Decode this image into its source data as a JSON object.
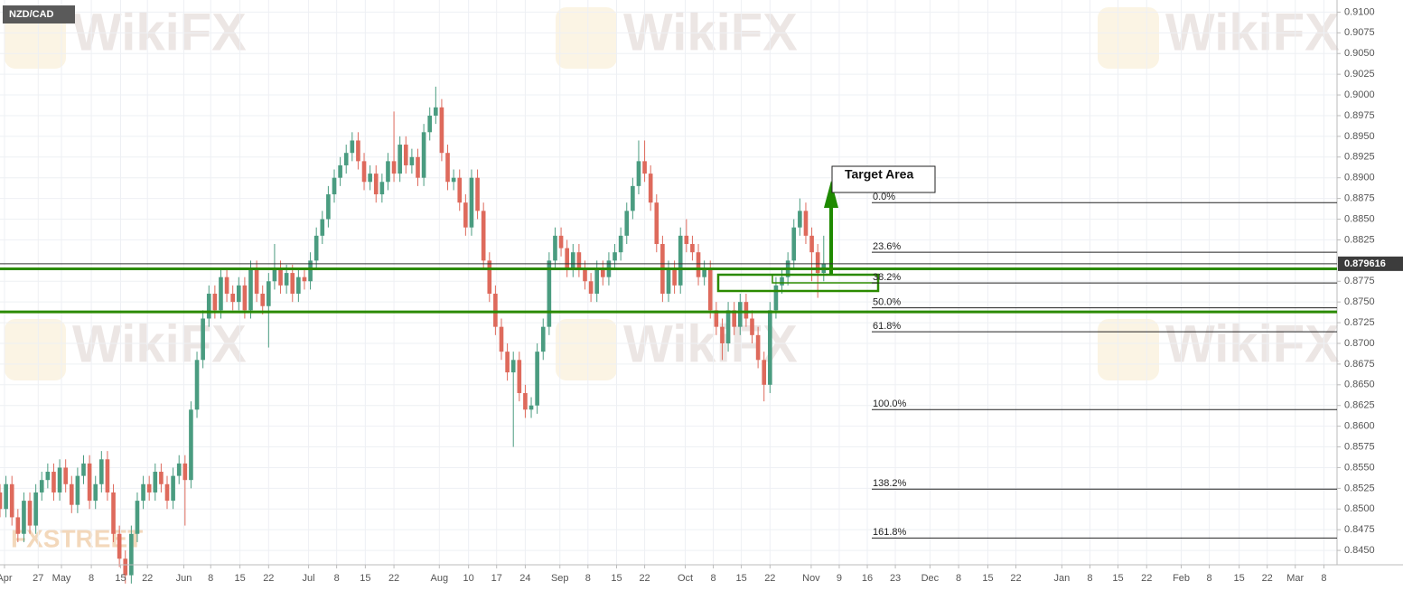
{
  "chart_data": {
    "type": "candlestick",
    "symbol": "NZD/CAD",
    "watermark": "WikiFX",
    "watermark2": "FXSTREET",
    "annotation": "Target Area",
    "up_color": "#4a9c80",
    "down_color": "#de6a5c",
    "grid": true,
    "ylim": [
      0.8425,
      0.9107
    ],
    "xlim": [
      0,
      224
    ],
    "yticks": [
      {
        "value": 0.91,
        "label": "0.9100"
      },
      {
        "value": 0.9075,
        "label": "0.9075"
      },
      {
        "value": 0.905,
        "label": "0.9050"
      },
      {
        "value": 0.9025,
        "label": "0.9025"
      },
      {
        "value": 0.9,
        "label": "0.9000"
      },
      {
        "value": 0.8975,
        "label": "0.8975"
      },
      {
        "value": 0.895,
        "label": "0.8950"
      },
      {
        "value": 0.8925,
        "label": "0.8925"
      },
      {
        "value": 0.89,
        "label": "0.8900"
      },
      {
        "value": 0.8875,
        "label": "0.8875"
      },
      {
        "value": 0.885,
        "label": "0.8850"
      },
      {
        "value": 0.8825,
        "label": "0.8825"
      },
      {
        "value": 0.8775,
        "label": "0.8775"
      },
      {
        "value": 0.875,
        "label": "0.8750"
      },
      {
        "value": 0.8725,
        "label": "0.8725"
      },
      {
        "value": 0.87,
        "label": "0.8700"
      },
      {
        "value": 0.8675,
        "label": "0.8675"
      },
      {
        "value": 0.865,
        "label": "0.8650"
      },
      {
        "value": 0.8625,
        "label": "0.8625"
      },
      {
        "value": 0.86,
        "label": "0.8600"
      },
      {
        "value": 0.8575,
        "label": "0.8575"
      },
      {
        "value": 0.855,
        "label": "0.8550"
      },
      {
        "value": 0.8525,
        "label": "0.8525"
      },
      {
        "value": 0.85,
        "label": "0.8500"
      },
      {
        "value": 0.8475,
        "label": "0.8475"
      },
      {
        "value": 0.845,
        "label": "0.8450"
      }
    ],
    "last_price": 0.879616,
    "xticks": [
      {
        "value": 0.75,
        "label": "Apr"
      },
      {
        "value": 6.4,
        "label": "27"
      },
      {
        "value": 10.3,
        "label": "May"
      },
      {
        "value": 15.3,
        "label": "8"
      },
      {
        "value": 20.2,
        "label": "15"
      },
      {
        "value": 24.7,
        "label": "22"
      },
      {
        "value": 30.8,
        "label": "Jun"
      },
      {
        "value": 35.3,
        "label": "8"
      },
      {
        "value": 40.2,
        "label": "15"
      },
      {
        "value": 45,
        "label": "22"
      },
      {
        "value": 51.7,
        "label": "Jul"
      },
      {
        "value": 56.4,
        "label": "8"
      },
      {
        "value": 61.2,
        "label": "15"
      },
      {
        "value": 66,
        "label": "22"
      },
      {
        "value": 73.6,
        "label": "Aug"
      },
      {
        "value": 78.5,
        "label": "10"
      },
      {
        "value": 83.2,
        "label": "17"
      },
      {
        "value": 88,
        "label": "24"
      },
      {
        "value": 93.8,
        "label": "Sep"
      },
      {
        "value": 98.5,
        "label": "8"
      },
      {
        "value": 103.3,
        "label": "15"
      },
      {
        "value": 108,
        "label": "22"
      },
      {
        "value": 114.8,
        "label": "Oct"
      },
      {
        "value": 119.5,
        "label": "8"
      },
      {
        "value": 124.2,
        "label": "15"
      },
      {
        "value": 129,
        "label": "22"
      },
      {
        "value": 135.9,
        "label": "Nov"
      },
      {
        "value": 140.6,
        "label": "9"
      },
      {
        "value": 145.3,
        "label": "16"
      },
      {
        "value": 150,
        "label": "23"
      },
      {
        "value": 155.8,
        "label": "Dec"
      },
      {
        "value": 160.6,
        "label": "8"
      },
      {
        "value": 165.5,
        "label": "15"
      },
      {
        "value": 170.2,
        "label": "22"
      },
      {
        "value": 177.9,
        "label": "Jan"
      },
      {
        "value": 182.6,
        "label": "8"
      },
      {
        "value": 187.3,
        "label": "15"
      },
      {
        "value": 192.1,
        "label": "22"
      },
      {
        "value": 197.9,
        "label": "Feb"
      },
      {
        "value": 202.6,
        "label": "8"
      },
      {
        "value": 207.6,
        "label": "15"
      },
      {
        "value": 212.3,
        "label": "22"
      },
      {
        "value": 217,
        "label": "Mar"
      },
      {
        "value": 221.8,
        "label": "8"
      }
    ],
    "support_lines": {
      "color": "#2b8a00",
      "values": [
        0.879,
        0.8738
      ]
    },
    "fibonacci": [
      {
        "label": "0.0%",
        "price": 0.887
      },
      {
        "label": "23.6%",
        "price": 0.881
      },
      {
        "label": "38.2%",
        "price": 0.8773
      },
      {
        "label": "50.0%",
        "price": 0.8743
      },
      {
        "label": "61.8%",
        "price": 0.8714
      },
      {
        "label": "100.0%",
        "price": 0.862
      },
      {
        "label": "138.2%",
        "price": 0.8524
      },
      {
        "label": "161.8%",
        "price": 0.8465
      }
    ],
    "open": [
      0.852,
      0.85,
      0.853,
      0.849,
      0.847,
      0.851,
      0.848,
      0.852,
      0.8535,
      0.8545,
      0.852,
      0.855,
      0.853,
      0.8505,
      0.854,
      0.8555,
      0.851,
      0.853,
      0.856,
      0.852,
      0.847,
      0.844,
      0.842,
      0.847,
      0.851,
      0.853,
      0.852,
      0.8545,
      0.853,
      0.851,
      0.854,
      0.8555,
      0.8535,
      0.862,
      0.868,
      0.873,
      0.876,
      0.874,
      0.878,
      0.876,
      0.875,
      0.877,
      0.874,
      0.879,
      0.876,
      0.8745,
      0.8775,
      0.879,
      0.877,
      0.8785,
      0.876,
      0.878,
      0.8775,
      0.88,
      0.883,
      0.885,
      0.888,
      0.89,
      0.8915,
      0.893,
      0.8945,
      0.892,
      0.8895,
      0.8905,
      0.888,
      0.8895,
      0.892,
      0.8905,
      0.894,
      0.8915,
      0.8925,
      0.89,
      0.8955,
      0.8975,
      0.8985,
      0.893,
      0.8895,
      0.89,
      0.887,
      0.884,
      0.89,
      0.886,
      0.88,
      0.876,
      0.872,
      0.869,
      0.8665,
      0.868,
      0.864,
      0.862,
      0.8625,
      0.869,
      0.872,
      0.88,
      0.883,
      0.8815,
      0.879,
      0.881,
      0.879,
      0.8775,
      0.876,
      0.879,
      0.878,
      0.88,
      0.881,
      0.883,
      0.886,
      0.889,
      0.892,
      0.8905,
      0.887,
      0.882,
      0.876,
      0.879,
      0.877,
      0.883,
      0.882,
      0.881,
      0.878,
      0.879,
      0.874,
      0.872,
      0.87,
      0.874,
      0.872,
      0.875,
      0.873,
      0.871,
      0.868,
      0.865,
      0.874,
      0.877,
      0.878,
      0.88,
      0.884,
      0.886,
      0.883,
      0.881,
      0.8785
    ],
    "high": [
      0.853,
      0.854,
      0.854,
      0.85,
      0.852,
      0.852,
      0.853,
      0.8545,
      0.8555,
      0.8555,
      0.856,
      0.856,
      0.854,
      0.855,
      0.8565,
      0.8565,
      0.854,
      0.857,
      0.857,
      0.853,
      0.848,
      0.845,
      0.848,
      0.852,
      0.854,
      0.854,
      0.8555,
      0.8555,
      0.854,
      0.855,
      0.8565,
      0.8565,
      0.863,
      0.869,
      0.874,
      0.877,
      0.877,
      0.879,
      0.879,
      0.877,
      0.878,
      0.878,
      0.88,
      0.88,
      0.877,
      0.8785,
      0.882,
      0.88,
      0.8795,
      0.8795,
      0.879,
      0.879,
      0.881,
      0.884,
      0.886,
      0.889,
      0.891,
      0.8925,
      0.894,
      0.8955,
      0.8955,
      0.893,
      0.8915,
      0.8915,
      0.8905,
      0.893,
      0.898,
      0.895,
      0.895,
      0.8935,
      0.8935,
      0.8965,
      0.8985,
      0.901,
      0.8995,
      0.894,
      0.891,
      0.891,
      0.888,
      0.891,
      0.891,
      0.887,
      0.881,
      0.877,
      0.873,
      0.87,
      0.869,
      0.869,
      0.865,
      0.8635,
      0.87,
      0.873,
      0.881,
      0.884,
      0.884,
      0.8825,
      0.882,
      0.882,
      0.88,
      0.8785,
      0.88,
      0.88,
      0.881,
      0.882,
      0.884,
      0.887,
      0.89,
      0.8945,
      0.8945,
      0.8915,
      0.888,
      0.883,
      0.88,
      0.88,
      0.884,
      0.885,
      0.883,
      0.882,
      0.88,
      0.88,
      0.875,
      0.873,
      0.875,
      0.875,
      0.876,
      0.876,
      0.874,
      0.872,
      0.869,
      0.875,
      0.878,
      0.879,
      0.881,
      0.885,
      0.8875,
      0.887,
      0.884,
      0.882,
      0.883
    ],
    "low": [
      0.849,
      0.849,
      0.848,
      0.846,
      0.846,
      0.847,
      0.847,
      0.851,
      0.8525,
      0.851,
      0.851,
      0.852,
      0.8495,
      0.8495,
      0.853,
      0.85,
      0.85,
      0.852,
      0.851,
      0.846,
      0.843,
      0.841,
      0.841,
      0.846,
      0.85,
      0.851,
      0.851,
      0.852,
      0.85,
      0.85,
      0.853,
      0.848,
      0.8525,
      0.861,
      0.867,
      0.872,
      0.873,
      0.873,
      0.875,
      0.874,
      0.874,
      0.873,
      0.873,
      0.875,
      0.8735,
      0.8695,
      0.8765,
      0.876,
      0.876,
      0.875,
      0.875,
      0.8765,
      0.8765,
      0.879,
      0.882,
      0.884,
      0.887,
      0.889,
      0.8905,
      0.892,
      0.891,
      0.8885,
      0.8885,
      0.887,
      0.887,
      0.8885,
      0.8895,
      0.8895,
      0.8905,
      0.8905,
      0.889,
      0.889,
      0.8945,
      0.8965,
      0.892,
      0.8885,
      0.8885,
      0.886,
      0.883,
      0.883,
      0.885,
      0.879,
      0.875,
      0.871,
      0.868,
      0.8655,
      0.8575,
      0.863,
      0.861,
      0.861,
      0.8615,
      0.868,
      0.871,
      0.879,
      0.8805,
      0.878,
      0.878,
      0.878,
      0.8765,
      0.875,
      0.875,
      0.877,
      0.877,
      0.879,
      0.88,
      0.882,
      0.885,
      0.888,
      0.8895,
      0.886,
      0.881,
      0.875,
      0.875,
      0.876,
      0.876,
      0.881,
      0.88,
      0.877,
      0.877,
      0.873,
      0.871,
      0.868,
      0.869,
      0.871,
      0.871,
      0.872,
      0.87,
      0.867,
      0.863,
      0.864,
      0.873,
      0.876,
      0.877,
      0.879,
      0.883,
      0.882,
      0.8775,
      0.8755,
      0.8775
    ],
    "close": [
      0.85,
      0.853,
      0.849,
      0.847,
      0.851,
      0.848,
      0.852,
      0.8535,
      0.8545,
      0.852,
      0.855,
      0.853,
      0.8505,
      0.854,
      0.8555,
      0.851,
      0.853,
      0.856,
      0.852,
      0.847,
      0.844,
      0.842,
      0.847,
      0.851,
      0.853,
      0.852,
      0.8545,
      0.853,
      0.851,
      0.854,
      0.8555,
      0.8535,
      0.862,
      0.868,
      0.873,
      0.876,
      0.874,
      0.878,
      0.876,
      0.875,
      0.877,
      0.874,
      0.879,
      0.876,
      0.8745,
      0.8775,
      0.879,
      0.877,
      0.8785,
      0.876,
      0.878,
      0.8775,
      0.88,
      0.883,
      0.885,
      0.888,
      0.89,
      0.8915,
      0.893,
      0.8945,
      0.892,
      0.8895,
      0.8905,
      0.888,
      0.8895,
      0.892,
      0.8905,
      0.894,
      0.8915,
      0.8925,
      0.89,
      0.8955,
      0.8975,
      0.8985,
      0.893,
      0.8895,
      0.89,
      0.887,
      0.884,
      0.89,
      0.886,
      0.88,
      0.876,
      0.872,
      0.869,
      0.8665,
      0.868,
      0.864,
      0.862,
      0.8625,
      0.869,
      0.872,
      0.88,
      0.883,
      0.8815,
      0.879,
      0.881,
      0.879,
      0.8775,
      0.876,
      0.879,
      0.878,
      0.88,
      0.881,
      0.883,
      0.886,
      0.889,
      0.892,
      0.8905,
      0.887,
      0.882,
      0.876,
      0.879,
      0.877,
      0.883,
      0.882,
      0.881,
      0.878,
      0.879,
      0.874,
      0.872,
      0.87,
      0.874,
      0.872,
      0.875,
      0.873,
      0.871,
      0.868,
      0.865,
      0.874,
      0.877,
      0.878,
      0.88,
      0.884,
      0.886,
      0.883,
      0.881,
      0.8785,
      0.8796
    ]
  }
}
